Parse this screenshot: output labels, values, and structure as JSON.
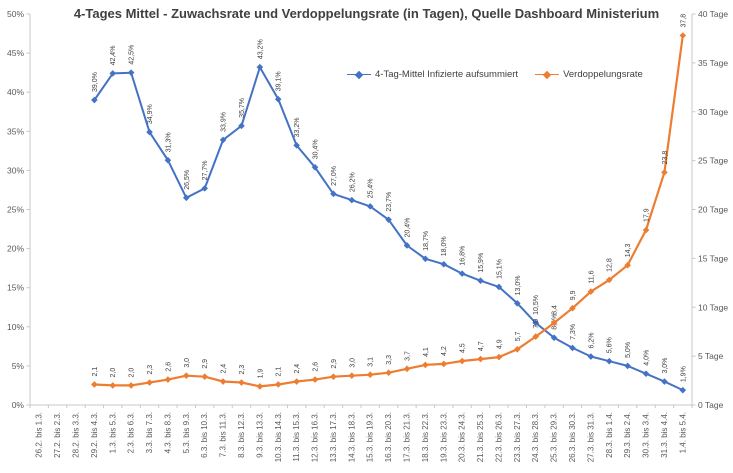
{
  "title": "4-Tages Mittel - Zuwachsrate und Verdoppelungsrate (in Tagen), Quelle Dashboard Ministerium",
  "legend": [
    {
      "label": "4-Tag-Mittel Infizierte aufsummiert",
      "color": "#4472C4"
    },
    {
      "label": "Verdoppelungsrate",
      "color": "#ED7D31"
    }
  ],
  "chart_data": {
    "type": "line",
    "title": "4-Tages Mittel - Zuwachsrate und Verdoppelungsrate (in Tagen), Quelle Dashboard Ministerium",
    "xlabel": "",
    "grid": false,
    "legend_position": "top-center",
    "categories": [
      "26.2. bis 1.3.",
      "27.2. bis 2.3.",
      "28.2. bis 3.3.",
      "29.2. bis 4.3.",
      "1.3. bis 5.3.",
      "2.3. bis 6.3.",
      "3.3. bis 7.3.",
      "4.3. bis 8.3.",
      "5.3. bis 9.3.",
      "6.3. bis 10.3.",
      "7.3. bis 11.3.",
      "8.3. bis 12.3.",
      "9.3. bis 13.3.",
      "10.3. bis 14.3.",
      "11.3. bis 15.3.",
      "12.3. bis 16.3.",
      "13.3. bis 17.3.",
      "14.3. bis 18.3.",
      "15.3. bis 19.3.",
      "16.3. bis 20.3.",
      "17.3. bis 21.3.",
      "18.3. bis 22.3.",
      "19.3. bis 23.3.",
      "20.3. bis 24.3.",
      "21.3. bis 25.3.",
      "22.3. bis 26.3.",
      "23.3. bis 27.3.",
      "24.3. bis 28.3.",
      "25.3. bis 29.3.",
      "26.3. bis 30.3.",
      "27.3. bis 31.3.",
      "28.3. bis 1.4.",
      "29.3. bis 2.4.",
      "30.3. bis 3.4.",
      "31.3. bis 4.4.",
      "1.4. bis 5.4."
    ],
    "left_axis": {
      "min": 0,
      "max": 50,
      "tick_values": [
        0,
        5,
        10,
        15,
        20,
        25,
        30,
        35,
        40,
        45,
        50
      ],
      "tick_labels": [
        "0%",
        "5%",
        "10%",
        "15%",
        "20%",
        "25%",
        "30%",
        "35%",
        "40%",
        "45%",
        "50%"
      ]
    },
    "right_axis": {
      "min": 0,
      "max": 40,
      "tick_values": [
        0,
        5,
        10,
        15,
        20,
        25,
        30,
        35,
        40
      ],
      "tick_labels": [
        "0 Tage",
        "5 Tage",
        "10 Tage",
        "15 Tage",
        "20 Tage",
        "25 Tage",
        "30 Tage",
        "35 Tage",
        "40 Tage"
      ]
    },
    "series": [
      {
        "name": "4-Tag-Mittel Infizierte aufsummiert",
        "axis": "left",
        "color": "#4472C4",
        "values": [
          null,
          null,
          null,
          39.0,
          42.4,
          42.5,
          34.9,
          31.3,
          26.5,
          27.7,
          33.9,
          35.7,
          43.2,
          39.1,
          33.2,
          30.4,
          27.0,
          26.2,
          25.4,
          23.7,
          20.4,
          18.7,
          18.0,
          16.8,
          15.9,
          15.1,
          13.0,
          10.5,
          8.6,
          7.3,
          6.2,
          5.6,
          5.0,
          4.0,
          3.0,
          1.9
        ],
        "labels": [
          "",
          "",
          "",
          "39,0%",
          "42,4%",
          "42,5%",
          "34,9%",
          "31,3%",
          "26,5%",
          "27,7%",
          "33,9%",
          "35,7%",
          "43,2%",
          "39,1%",
          "33,2%",
          "30,4%",
          "27,0%",
          "26,2%",
          "25,4%",
          "23,7%",
          "20,4%",
          "18,7%",
          "18,0%",
          "16,8%",
          "15,9%",
          "15,1%",
          "13,0%",
          "10,5%",
          "8,6%",
          "7,3%",
          "6,2%",
          "5,6%",
          "5,0%",
          "4,0%",
          "3,0%",
          "1,9%"
        ]
      },
      {
        "name": "Verdoppelungsrate",
        "axis": "right",
        "color": "#ED7D31",
        "values": [
          null,
          null,
          null,
          2.1,
          2.0,
          2.0,
          2.3,
          2.6,
          3.0,
          2.9,
          2.4,
          2.3,
          1.9,
          2.1,
          2.4,
          2.6,
          2.9,
          3.0,
          3.1,
          3.3,
          3.7,
          4.1,
          4.2,
          4.5,
          4.7,
          4.9,
          5.7,
          7.0,
          8.4,
          9.9,
          11.6,
          12.8,
          14.3,
          17.9,
          23.8,
          37.8
        ],
        "labels": [
          "",
          "",
          "",
          "2,1",
          "2,0",
          "2,0",
          "2,3",
          "2,6",
          "3,0",
          "2,9",
          "2,4",
          "2,3",
          "1,9",
          "2,1",
          "2,4",
          "2,6",
          "2,9",
          "3,0",
          "3,1",
          "3,3",
          "3,7",
          "4,1",
          "4,2",
          "4,5",
          "4,7",
          "4,9",
          "5,7",
          "7,0",
          "8,4",
          "9,9",
          "11,6",
          "12,8",
          "14,3",
          "17,9",
          "23,8",
          "37,8"
        ]
      }
    ]
  }
}
